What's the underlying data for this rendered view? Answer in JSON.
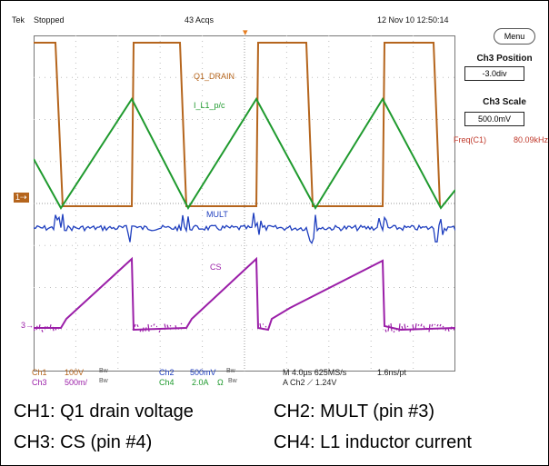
{
  "status": {
    "brand": "Tek",
    "state": "Stopped",
    "acquisitions": "43 Acqs",
    "datetime": "12 Nov 10 12:50:14"
  },
  "side_panel": {
    "menu_label": "Menu",
    "position_title": "Ch3 Position",
    "position_value": "-3.0div",
    "scale_title": "Ch3 Scale",
    "scale_value": "500.0mV",
    "freq_label": "Freq(C1)",
    "freq_value": "80.09kHz"
  },
  "trace_labels": {
    "ch1": "Q1_DRAIN",
    "ch4": "I_L1_p/c",
    "ch2": "MULT",
    "ch3": "CS"
  },
  "channel_markers": {
    "ch1": "1",
    "ch3": "3"
  },
  "settings": {
    "ch1_name": "Ch1",
    "ch1_scale": "100V",
    "ch1_bw": "Bw",
    "ch2_name": "Ch2",
    "ch2_scale": "500mV",
    "ch2_bw": "Bw",
    "ch3_name": "Ch3",
    "ch3_scale": "500m/",
    "ch3_bw": "Bw",
    "ch4_name": "Ch4",
    "ch4_scale": "2.0A",
    "ch4_extra": "Ω",
    "ch4_bw": "Bw",
    "timebase": "M 4.0µs 625MS/s",
    "record": "1.6ns/pt",
    "trigger": "A  Ch2  ⟋  1.24V"
  },
  "captions": {
    "ch1": "CH1: Q1 drain voltage",
    "ch2": "CH2: MULT (pin #3)",
    "ch3": "CH3: CS (pin #4)",
    "ch4": "CH4: L1 inductor current"
  },
  "colors": {
    "ch1": "#b5651d",
    "ch2": "#1f3fbf",
    "ch3": "#9b1fa8",
    "ch4": "#1f9a2e",
    "grid": "#bdbdbd"
  },
  "chart_data": {
    "type": "line",
    "title": "",
    "timebase": "4.0µs/div",
    "divisions_x": 10,
    "divisions_y": 8,
    "switching_frequency": "80.09kHz",
    "series": [
      {
        "name": "Q1_DRAIN",
        "channel": "Ch1",
        "waveform": "square",
        "cycles": 2.5
      },
      {
        "name": "I_L1_p/c",
        "channel": "Ch4",
        "waveform": "triangle",
        "cycles": 2.5
      },
      {
        "name": "MULT",
        "channel": "Ch2",
        "waveform": "noise-with-spikes"
      },
      {
        "name": "CS",
        "channel": "Ch3",
        "waveform": "ramp",
        "cycles": 2.5
      }
    ]
  }
}
